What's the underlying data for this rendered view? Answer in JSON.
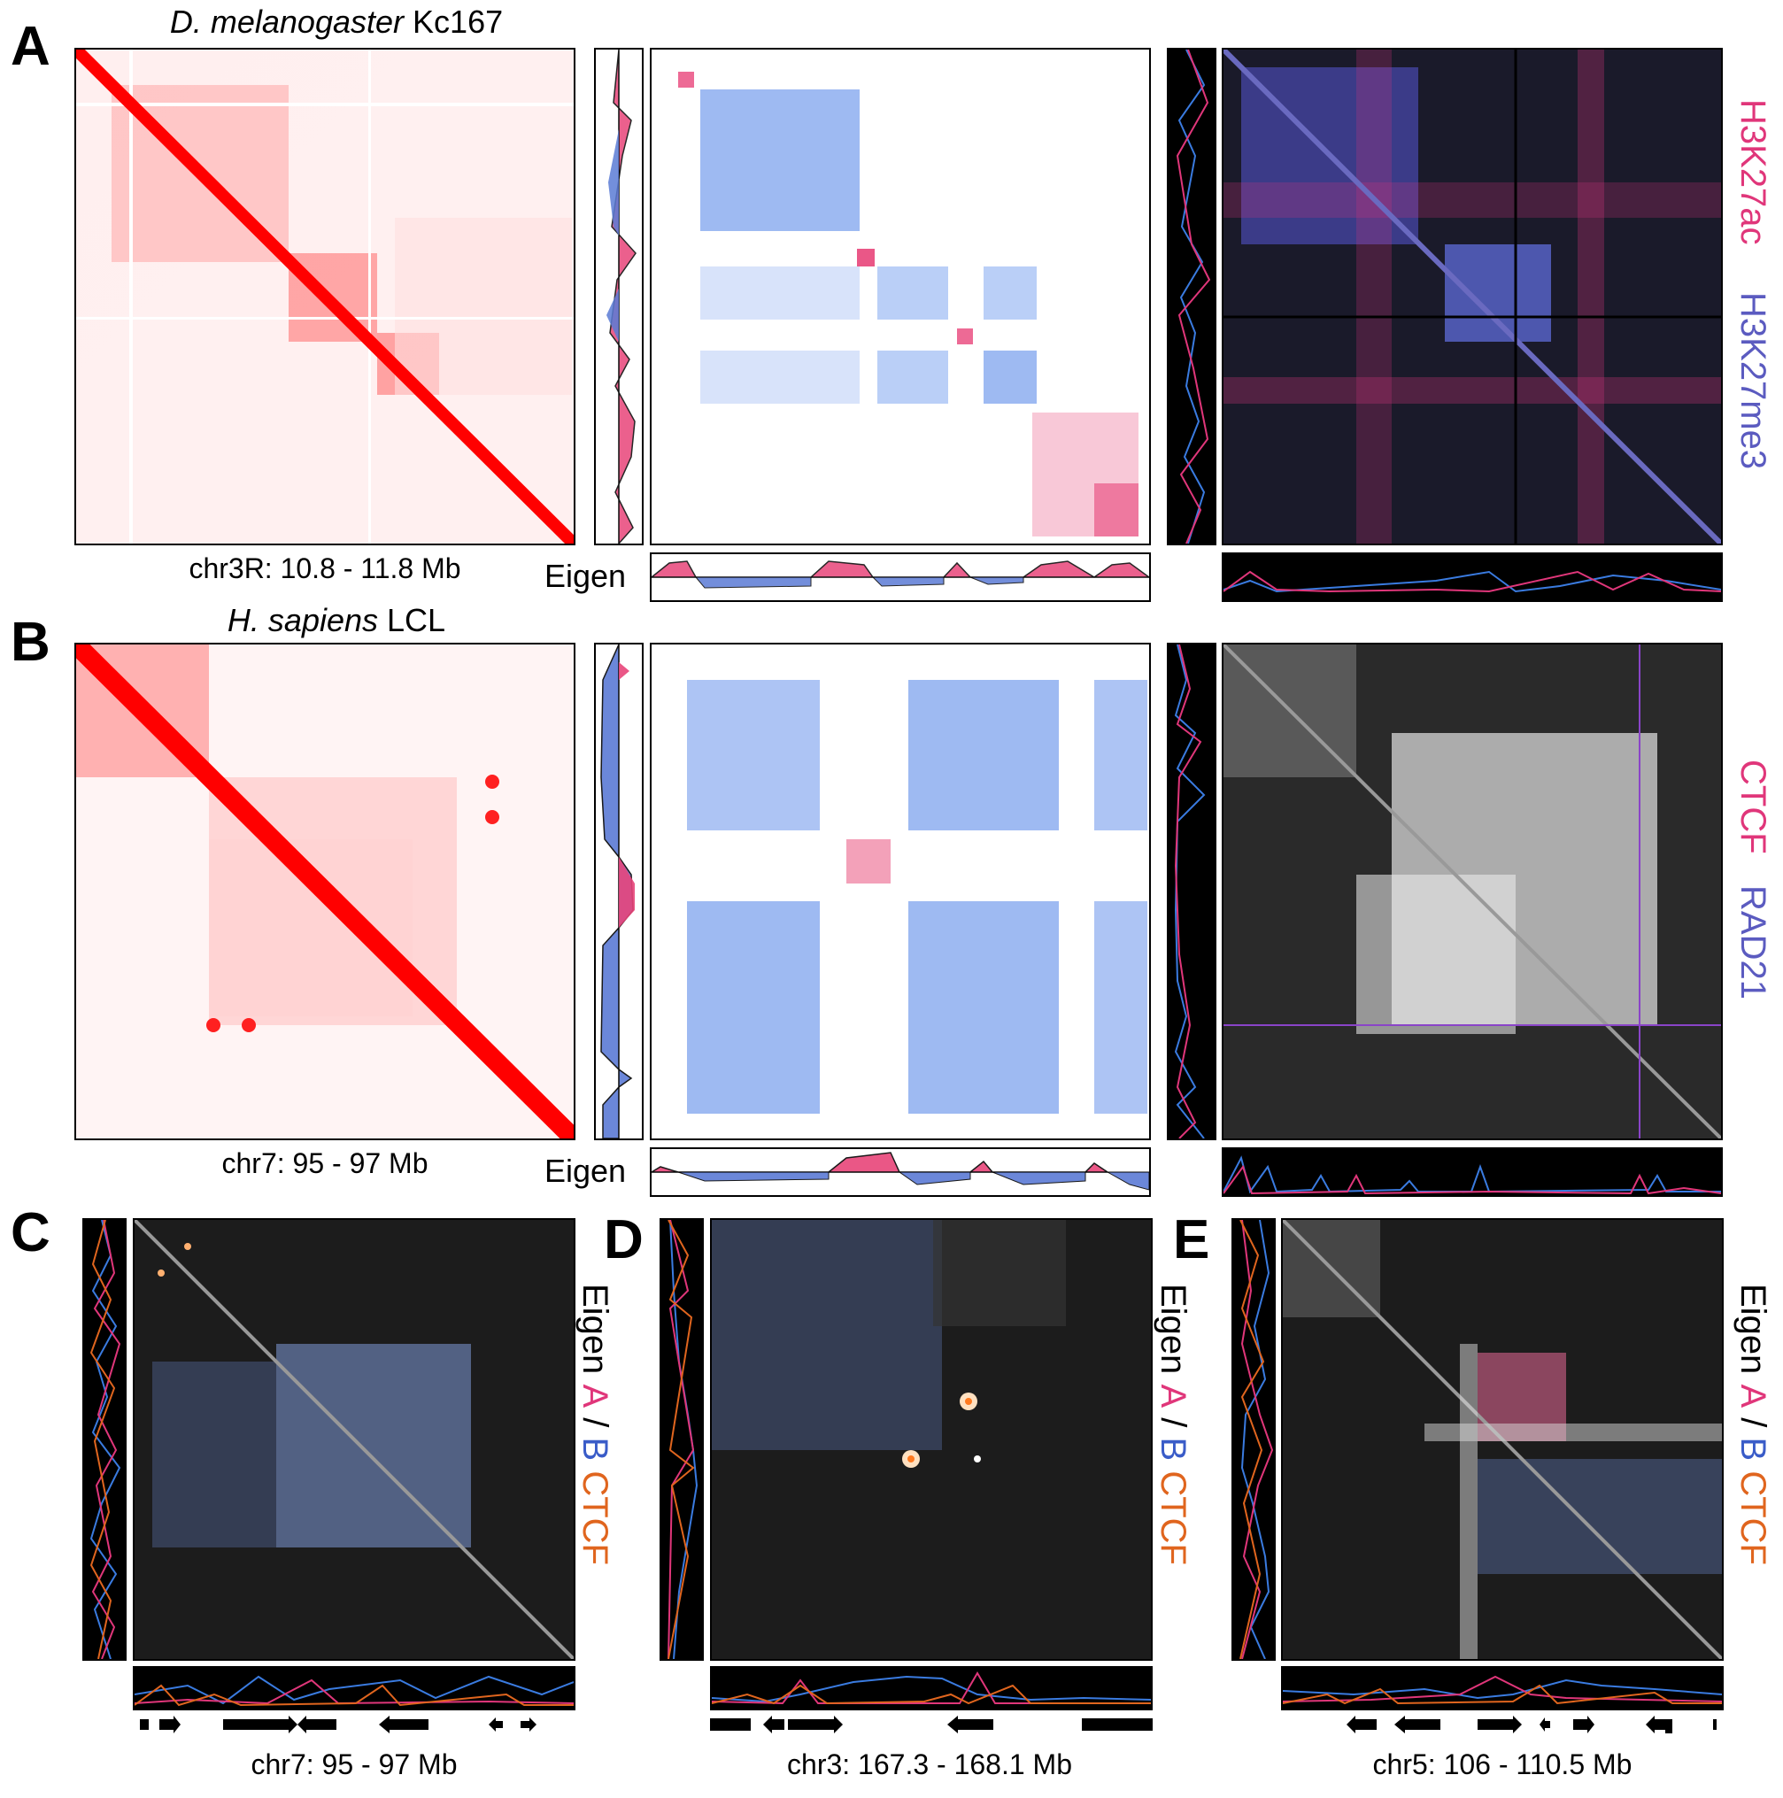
{
  "panels": {
    "A": {
      "letter": "A",
      "title_species": "D. melanogaster",
      "title_cell": "Kc167",
      "caption": "chr3R: 10.8 - 11.8 Mb",
      "eigen_label": "Eigen",
      "right_labels": [
        "H3K27ac",
        "H3K27me3"
      ],
      "colors": {
        "heat": "#ff0000",
        "a": "#e8457a",
        "b": "#5b7bd5",
        "k27ac": "#e0367a",
        "k27me3": "#5b5bc0"
      }
    },
    "B": {
      "letter": "B",
      "title_species": "H. sapiens",
      "title_cell": "LCL",
      "caption": "chr7: 95 - 97 Mb",
      "eigen_label": "Eigen",
      "right_labels": [
        "CTCF",
        "RAD21"
      ],
      "colors": {
        "ctcf": "#e0367a",
        "rad21": "#5b5bc0"
      }
    },
    "C": {
      "letter": "C",
      "caption": "chr7: 95 - 97 Mb"
    },
    "D": {
      "letter": "D",
      "caption": "chr3: 167.3 - 168.1 Mb"
    },
    "E": {
      "letter": "E",
      "caption": "chr5: 106 - 110.5 Mb"
    },
    "legend_CDE": {
      "eigen": "Eigen",
      "a": "A",
      "slash": "/",
      "b": "B",
      "ctcf": "CTCF",
      "colors": {
        "a": "#e0367a",
        "b": "#3a5cc8",
        "ctcf": "#e0651e"
      }
    }
  }
}
